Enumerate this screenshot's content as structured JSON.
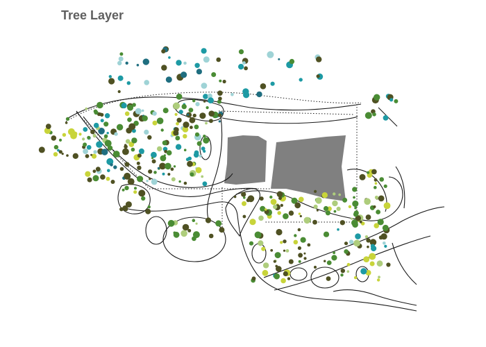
{
  "title": "Tree Layer",
  "colors": {
    "background": "#ffffff",
    "title": "#5f5f5f",
    "building": "#808080",
    "paths": "#1a1a1a"
  },
  "tree_palette": {
    "dark_olive": "#4f5123",
    "forest_green": "#4a8c34",
    "teal": "#1d9aa4",
    "light_teal": "#9fd3d6",
    "yellow_green": "#c8d43a",
    "pale_green": "#aecd7c",
    "deep_teal": "#1f6e80"
  }
}
